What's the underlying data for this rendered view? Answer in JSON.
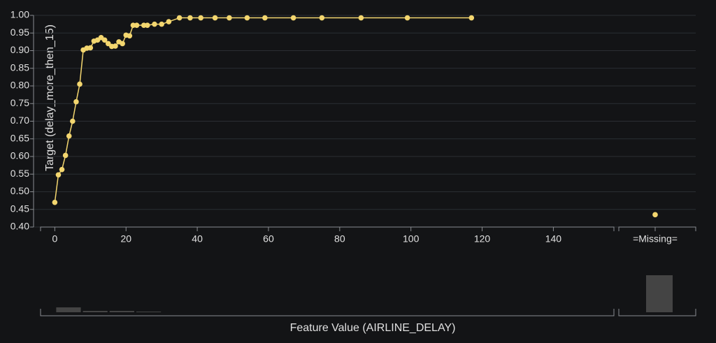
{
  "chart_data": {
    "type": "line",
    "x_label": "Feature Value (AIRLINE_DELAY)",
    "y_label": "Target (delay_more_then_15)",
    "x": [
      0,
      1,
      2,
      3,
      4,
      5,
      6,
      7,
      8,
      9,
      10,
      11,
      12,
      13,
      14,
      15,
      16,
      17,
      18,
      19,
      20,
      21,
      22,
      23,
      25,
      26,
      28,
      30,
      32,
      35,
      38,
      41,
      45,
      49,
      54,
      59,
      67,
      75,
      86,
      99,
      117
    ],
    "series": [
      {
        "color": "#f3d66f",
        "values": [
          0.47,
          0.548,
          0.563,
          0.603,
          0.658,
          0.7,
          0.755,
          0.805,
          0.902,
          0.907,
          0.908,
          0.927,
          0.93,
          0.937,
          0.93,
          0.92,
          0.912,
          0.913,
          0.925,
          0.92,
          0.944,
          0.942,
          0.972,
          0.972,
          0.972,
          0.972,
          0.975,
          0.975,
          0.982,
          0.993,
          0.993,
          0.993,
          0.993,
          0.993,
          0.993,
          0.993,
          0.993,
          0.993,
          0.993,
          0.993,
          0.993
        ]
      }
    ],
    "missing": {
      "label": "=Missing=",
      "value": 0.435,
      "count": 53
    },
    "histogram": {
      "bins": [
        0,
        7.5,
        15,
        22.5,
        30
      ],
      "counts": [
        7,
        2,
        2,
        1
      ]
    },
    "xlim": [
      -4,
      157
    ],
    "xticks": [
      0,
      20,
      40,
      60,
      80,
      100,
      120,
      140
    ],
    "ylim": [
      0.4,
      1.0
    ],
    "yticks": [
      {
        "value": 0.4,
        "label": "0.40"
      },
      {
        "value": 0.45,
        "label": "0.45"
      },
      {
        "value": 0.5,
        "label": "0.50"
      },
      {
        "value": 0.55,
        "label": "0.55"
      },
      {
        "value": 0.6,
        "label": "0.60"
      },
      {
        "value": 0.65,
        "label": "0.65"
      },
      {
        "value": 0.7,
        "label": "0.70"
      },
      {
        "value": 0.75,
        "label": "0.75"
      },
      {
        "value": 0.8,
        "label": "0.80"
      },
      {
        "value": 0.85,
        "label": "0.85"
      },
      {
        "value": 0.9,
        "label": "0.90"
      },
      {
        "value": 0.95,
        "label": "0.95"
      },
      {
        "value": 1.0,
        "label": "1.00"
      }
    ],
    "grid": true
  }
}
